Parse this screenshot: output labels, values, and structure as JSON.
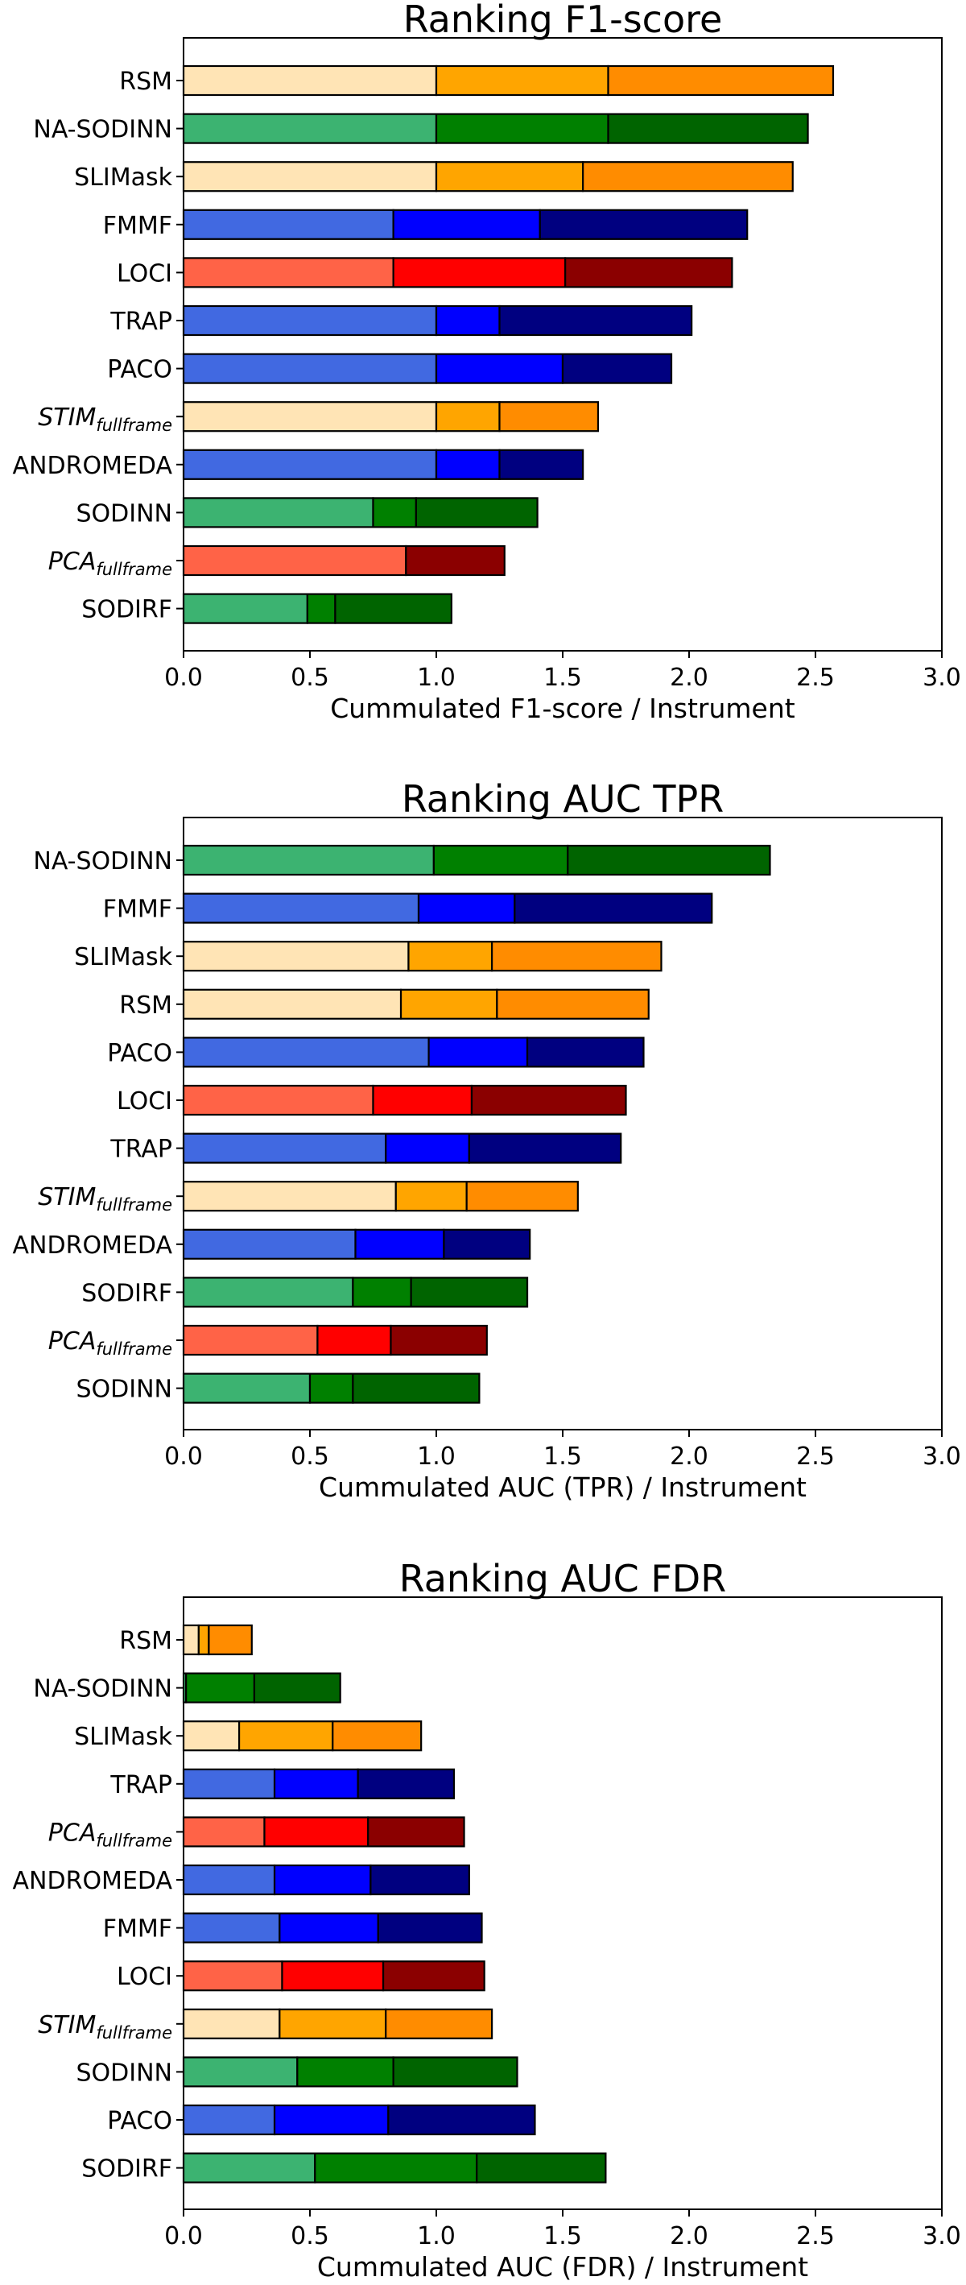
{
  "charts": [
    {
      "title": "Ranking F1-score",
      "chart_type": "stacked horizontal bar",
      "xlabel": "Cummulated F1-score / Instrument",
      "ylabel": "",
      "xlim": [
        0.0,
        3.0
      ],
      "x_ticks": [
        0.0,
        0.5,
        1.0,
        1.5,
        2.0,
        2.5,
        3.0
      ],
      "x_tick_labels": [
        "0.0",
        "0.5",
        "1.0",
        "1.5",
        "2.0",
        "2.5",
        "3.0"
      ],
      "grid": false,
      "categories": [
        "RSM",
        "NA-SODINN",
        "SLIMask",
        "FMMF",
        "LOCI",
        "TRAP",
        "PACO",
        "STIM",
        "ANDROMEDA",
        "SODINN",
        "PCA",
        "SODIRF"
      ],
      "category_subscripts": [
        "",
        "",
        "",
        "",
        "",
        "",
        "",
        "fullframe",
        "",
        "",
        "fullframe",
        ""
      ],
      "category_italic": [
        false,
        false,
        false,
        false,
        false,
        false,
        false,
        true,
        false,
        false,
        true,
        false
      ],
      "families": [
        "orange",
        "green",
        "orange",
        "blue",
        "red",
        "blue",
        "blue",
        "orange",
        "blue",
        "green",
        "red",
        "green"
      ],
      "segments": [
        [
          1.0,
          0.68,
          0.89
        ],
        [
          1.0,
          0.68,
          0.79
        ],
        [
          1.0,
          0.58,
          0.83
        ],
        [
          0.83,
          0.58,
          0.82
        ],
        [
          0.83,
          0.68,
          0.66
        ],
        [
          1.0,
          0.25,
          0.76
        ],
        [
          1.0,
          0.5,
          0.43
        ],
        [
          1.0,
          0.25,
          0.39
        ],
        [
          1.0,
          0.25,
          0.33
        ],
        [
          0.75,
          0.17,
          0.48
        ],
        [
          0.88,
          0.0,
          0.39
        ],
        [
          0.49,
          0.11,
          0.46
        ]
      ]
    },
    {
      "title": "Ranking AUC TPR",
      "chart_type": "stacked horizontal bar",
      "xlabel": "Cummulated AUC (TPR) / Instrument",
      "ylabel": "",
      "xlim": [
        0.0,
        3.0
      ],
      "x_ticks": [
        0.0,
        0.5,
        1.0,
        1.5,
        2.0,
        2.5,
        3.0
      ],
      "x_tick_labels": [
        "0.0",
        "0.5",
        "1.0",
        "1.5",
        "2.0",
        "2.5",
        "3.0"
      ],
      "grid": false,
      "categories": [
        "NA-SODINN",
        "FMMF",
        "SLIMask",
        "RSM",
        "PACO",
        "LOCI",
        "TRAP",
        "STIM",
        "ANDROMEDA",
        "SODIRF",
        "PCA",
        "SODINN"
      ],
      "category_subscripts": [
        "",
        "",
        "",
        "",
        "",
        "",
        "",
        "fullframe",
        "",
        "",
        "fullframe",
        ""
      ],
      "category_italic": [
        false,
        false,
        false,
        false,
        false,
        false,
        false,
        true,
        false,
        false,
        true,
        false
      ],
      "families": [
        "green",
        "blue",
        "orange",
        "orange",
        "blue",
        "red",
        "blue",
        "orange",
        "blue",
        "green",
        "red",
        "green"
      ],
      "segments": [
        [
          0.99,
          0.53,
          0.8
        ],
        [
          0.93,
          0.38,
          0.78
        ],
        [
          0.89,
          0.33,
          0.67
        ],
        [
          0.86,
          0.38,
          0.6
        ],
        [
          0.97,
          0.39,
          0.46
        ],
        [
          0.75,
          0.39,
          0.61
        ],
        [
          0.8,
          0.33,
          0.6
        ],
        [
          0.84,
          0.28,
          0.44
        ],
        [
          0.68,
          0.35,
          0.34
        ],
        [
          0.67,
          0.23,
          0.46
        ],
        [
          0.53,
          0.29,
          0.38
        ],
        [
          0.5,
          0.17,
          0.5
        ]
      ]
    },
    {
      "title": "Ranking AUC FDR",
      "chart_type": "stacked horizontal bar",
      "xlabel": "Cummulated AUC (FDR) / Instrument",
      "ylabel": "",
      "xlim": [
        0.0,
        3.0
      ],
      "x_ticks": [
        0.0,
        0.5,
        1.0,
        1.5,
        2.0,
        2.5,
        3.0
      ],
      "x_tick_labels": [
        "0.0",
        "0.5",
        "1.0",
        "1.5",
        "2.0",
        "2.5",
        "3.0"
      ],
      "grid": false,
      "categories": [
        "RSM",
        "NA-SODINN",
        "SLIMask",
        "TRAP",
        "PCA",
        "ANDROMEDA",
        "FMMF",
        "LOCI",
        "STIM",
        "SODINN",
        "PACO",
        "SODIRF"
      ],
      "category_subscripts": [
        "",
        "",
        "",
        "",
        "fullframe",
        "",
        "",
        "",
        "fullframe",
        "",
        "",
        ""
      ],
      "category_italic": [
        false,
        false,
        false,
        false,
        true,
        false,
        false,
        false,
        true,
        false,
        false,
        false
      ],
      "families": [
        "orange",
        "green",
        "orange",
        "blue",
        "red",
        "blue",
        "blue",
        "red",
        "orange",
        "green",
        "blue",
        "green"
      ],
      "segments": [
        [
          0.06,
          0.04,
          0.17
        ],
        [
          0.01,
          0.27,
          0.34
        ],
        [
          0.22,
          0.37,
          0.35
        ],
        [
          0.36,
          0.33,
          0.38
        ],
        [
          0.32,
          0.41,
          0.38
        ],
        [
          0.36,
          0.38,
          0.39
        ],
        [
          0.38,
          0.39,
          0.41
        ],
        [
          0.39,
          0.4,
          0.4
        ],
        [
          0.38,
          0.42,
          0.42
        ],
        [
          0.45,
          0.38,
          0.49
        ],
        [
          0.36,
          0.45,
          0.58
        ],
        [
          0.52,
          0.64,
          0.51
        ]
      ]
    }
  ],
  "colors": {
    "orange": [
      "#ffe4b5",
      "#ffa500",
      "#ff8c00"
    ],
    "green": [
      "#3cb371",
      "#008000",
      "#006400"
    ],
    "blue": [
      "#4169e1",
      "#0000ff",
      "#000080"
    ],
    "red": [
      "#ff6347",
      "#ff0000",
      "#8b0000"
    ],
    "edge": "#000000",
    "axes": "#000000",
    "background": "#ffffff"
  }
}
